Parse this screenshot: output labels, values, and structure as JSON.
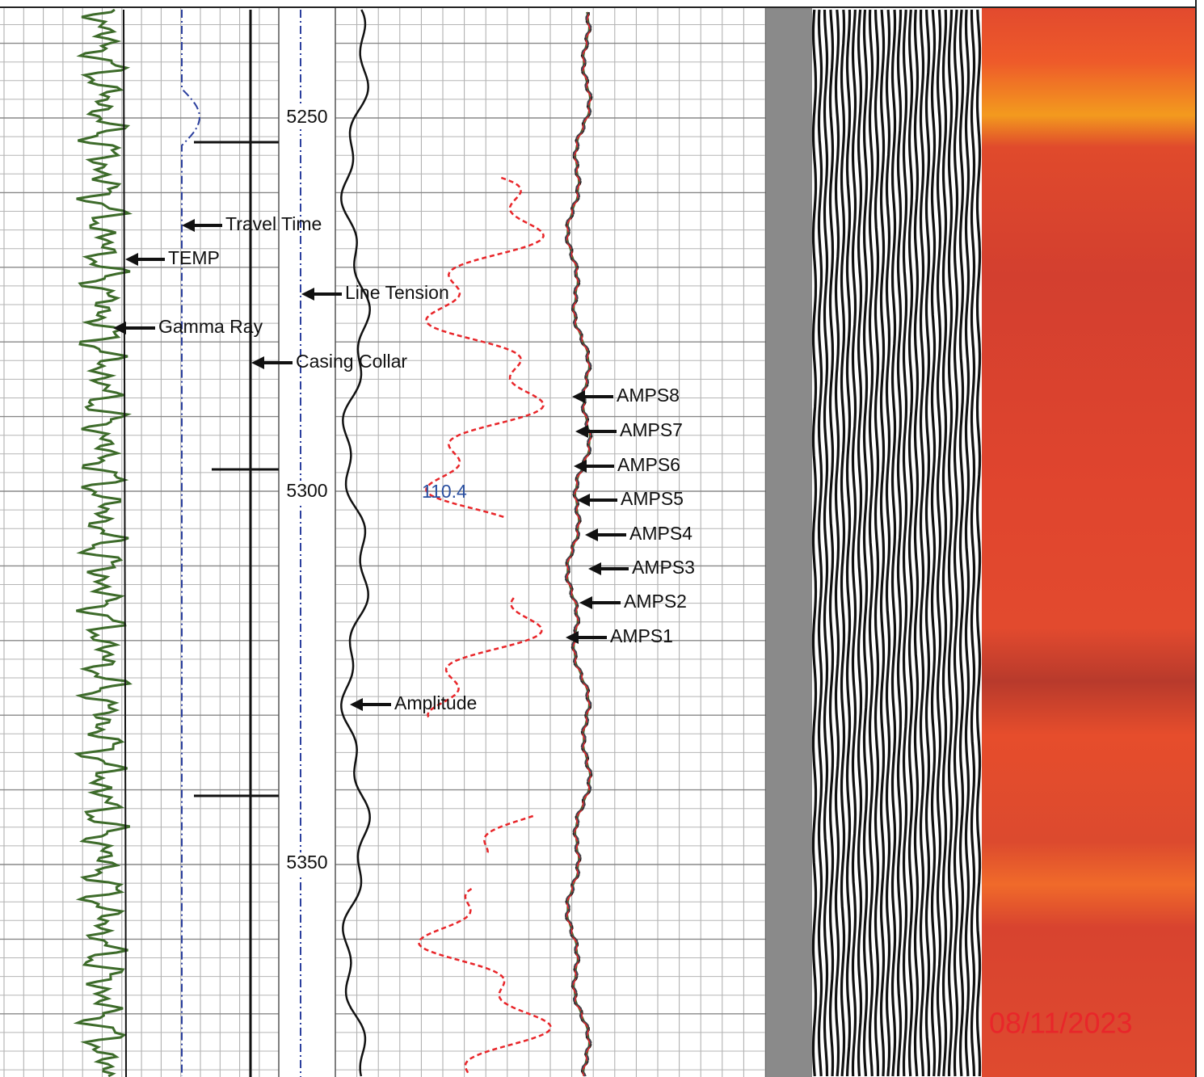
{
  "depth_labels": [
    "5250",
    "5300",
    "5350"
  ],
  "curve_labels": {
    "travel_time": "Travel Time",
    "temp": "TEMP",
    "line_tension": "Line Tension",
    "gamma_ray": "Gamma Ray",
    "casing_collar": "Casing Collar",
    "amplitude": "Amplitude",
    "amps": [
      "AMPS8",
      "AMPS7",
      "AMPS6",
      "AMPS5",
      "AMPS4",
      "AMPS3",
      "AMPS2",
      "AMPS1"
    ]
  },
  "annotation": "110.4",
  "date_stamp": "08/11/2023"
}
